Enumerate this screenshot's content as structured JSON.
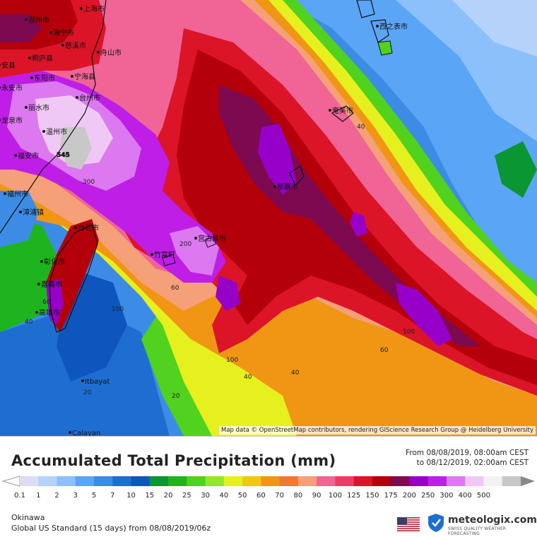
{
  "map": {
    "attribution": "Map data © OpenStreetMap contributors, rendering GIScience Research Group @ Heidelberg University",
    "cities": [
      {
        "name": "上海市"
      },
      {
        "name": "湖州市"
      },
      {
        "name": "海宁市"
      },
      {
        "name": "慈溪市"
      },
      {
        "name": "舟山市"
      },
      {
        "name": "桐庐县"
      },
      {
        "name": "宁海县"
      },
      {
        "name": "东阳市"
      },
      {
        "name": "台州市"
      },
      {
        "name": "丽水市"
      },
      {
        "name": "温州市"
      },
      {
        "name": "福安市"
      },
      {
        "name": "福州市"
      },
      {
        "name": "漳浦镇"
      },
      {
        "name": "台北市"
      },
      {
        "name": "彰化市"
      },
      {
        "name": "嘉義市"
      },
      {
        "name": "高雄市"
      },
      {
        "name": "宫古島市"
      },
      {
        "name": "竹富町"
      },
      {
        "name": "那覇市"
      },
      {
        "name": "奄美市"
      },
      {
        "name": "西之表市"
      },
      {
        "name": "Itbayat"
      },
      {
        "name": "Calayan"
      },
      {
        "name": "龙泉市"
      },
      {
        "name": "安县"
      },
      {
        "name": "永安市"
      }
    ],
    "contour_labels": [
      "545",
      "300",
      "200",
      "100",
      "60",
      "40",
      "40",
      "100",
      "60",
      "100",
      "40",
      "20",
      "20",
      "40",
      "60"
    ]
  },
  "title": "Accumulated Total Precipitation (mm)",
  "period": {
    "from": "From 08/08/2019, 08:00am CEST",
    "to": "to 08/12/2019, 02:00am CEST"
  },
  "legend": {
    "ticks": [
      "0.1",
      "1",
      "2",
      "3",
      "5",
      "7",
      "10",
      "15",
      "20",
      "25",
      "30",
      "40",
      "50",
      "60",
      "70",
      "80",
      "90",
      "100",
      "125",
      "150",
      "175",
      "200",
      "250",
      "300",
      "400",
      "500"
    ],
    "colors": [
      "#dcdcf5",
      "#b4d2fa",
      "#8cc0fa",
      "#5aa5f5",
      "#3c8ce6",
      "#1e6ed2",
      "#0f55be",
      "#0a9632",
      "#1eb41e",
      "#50d21e",
      "#96e628",
      "#e6f01e",
      "#f0c814",
      "#f09614",
      "#f07832",
      "#f5a078",
      "#f06496",
      "#f03c64",
      "#dc1428",
      "#b4000a",
      "#7d0a50",
      "#9600c8",
      "#be1ee6",
      "#dc78f0",
      "#f0c8f5",
      "#f5f0f5",
      "#c8c8c8"
    ]
  },
  "footer": {
    "region": "Okinawa",
    "model": "Global US Standard (15 days) from 08/08/2019/06z",
    "brand": "meteologix.com",
    "tagline": "SWISS QUALITY WEATHER FORECASTING"
  }
}
